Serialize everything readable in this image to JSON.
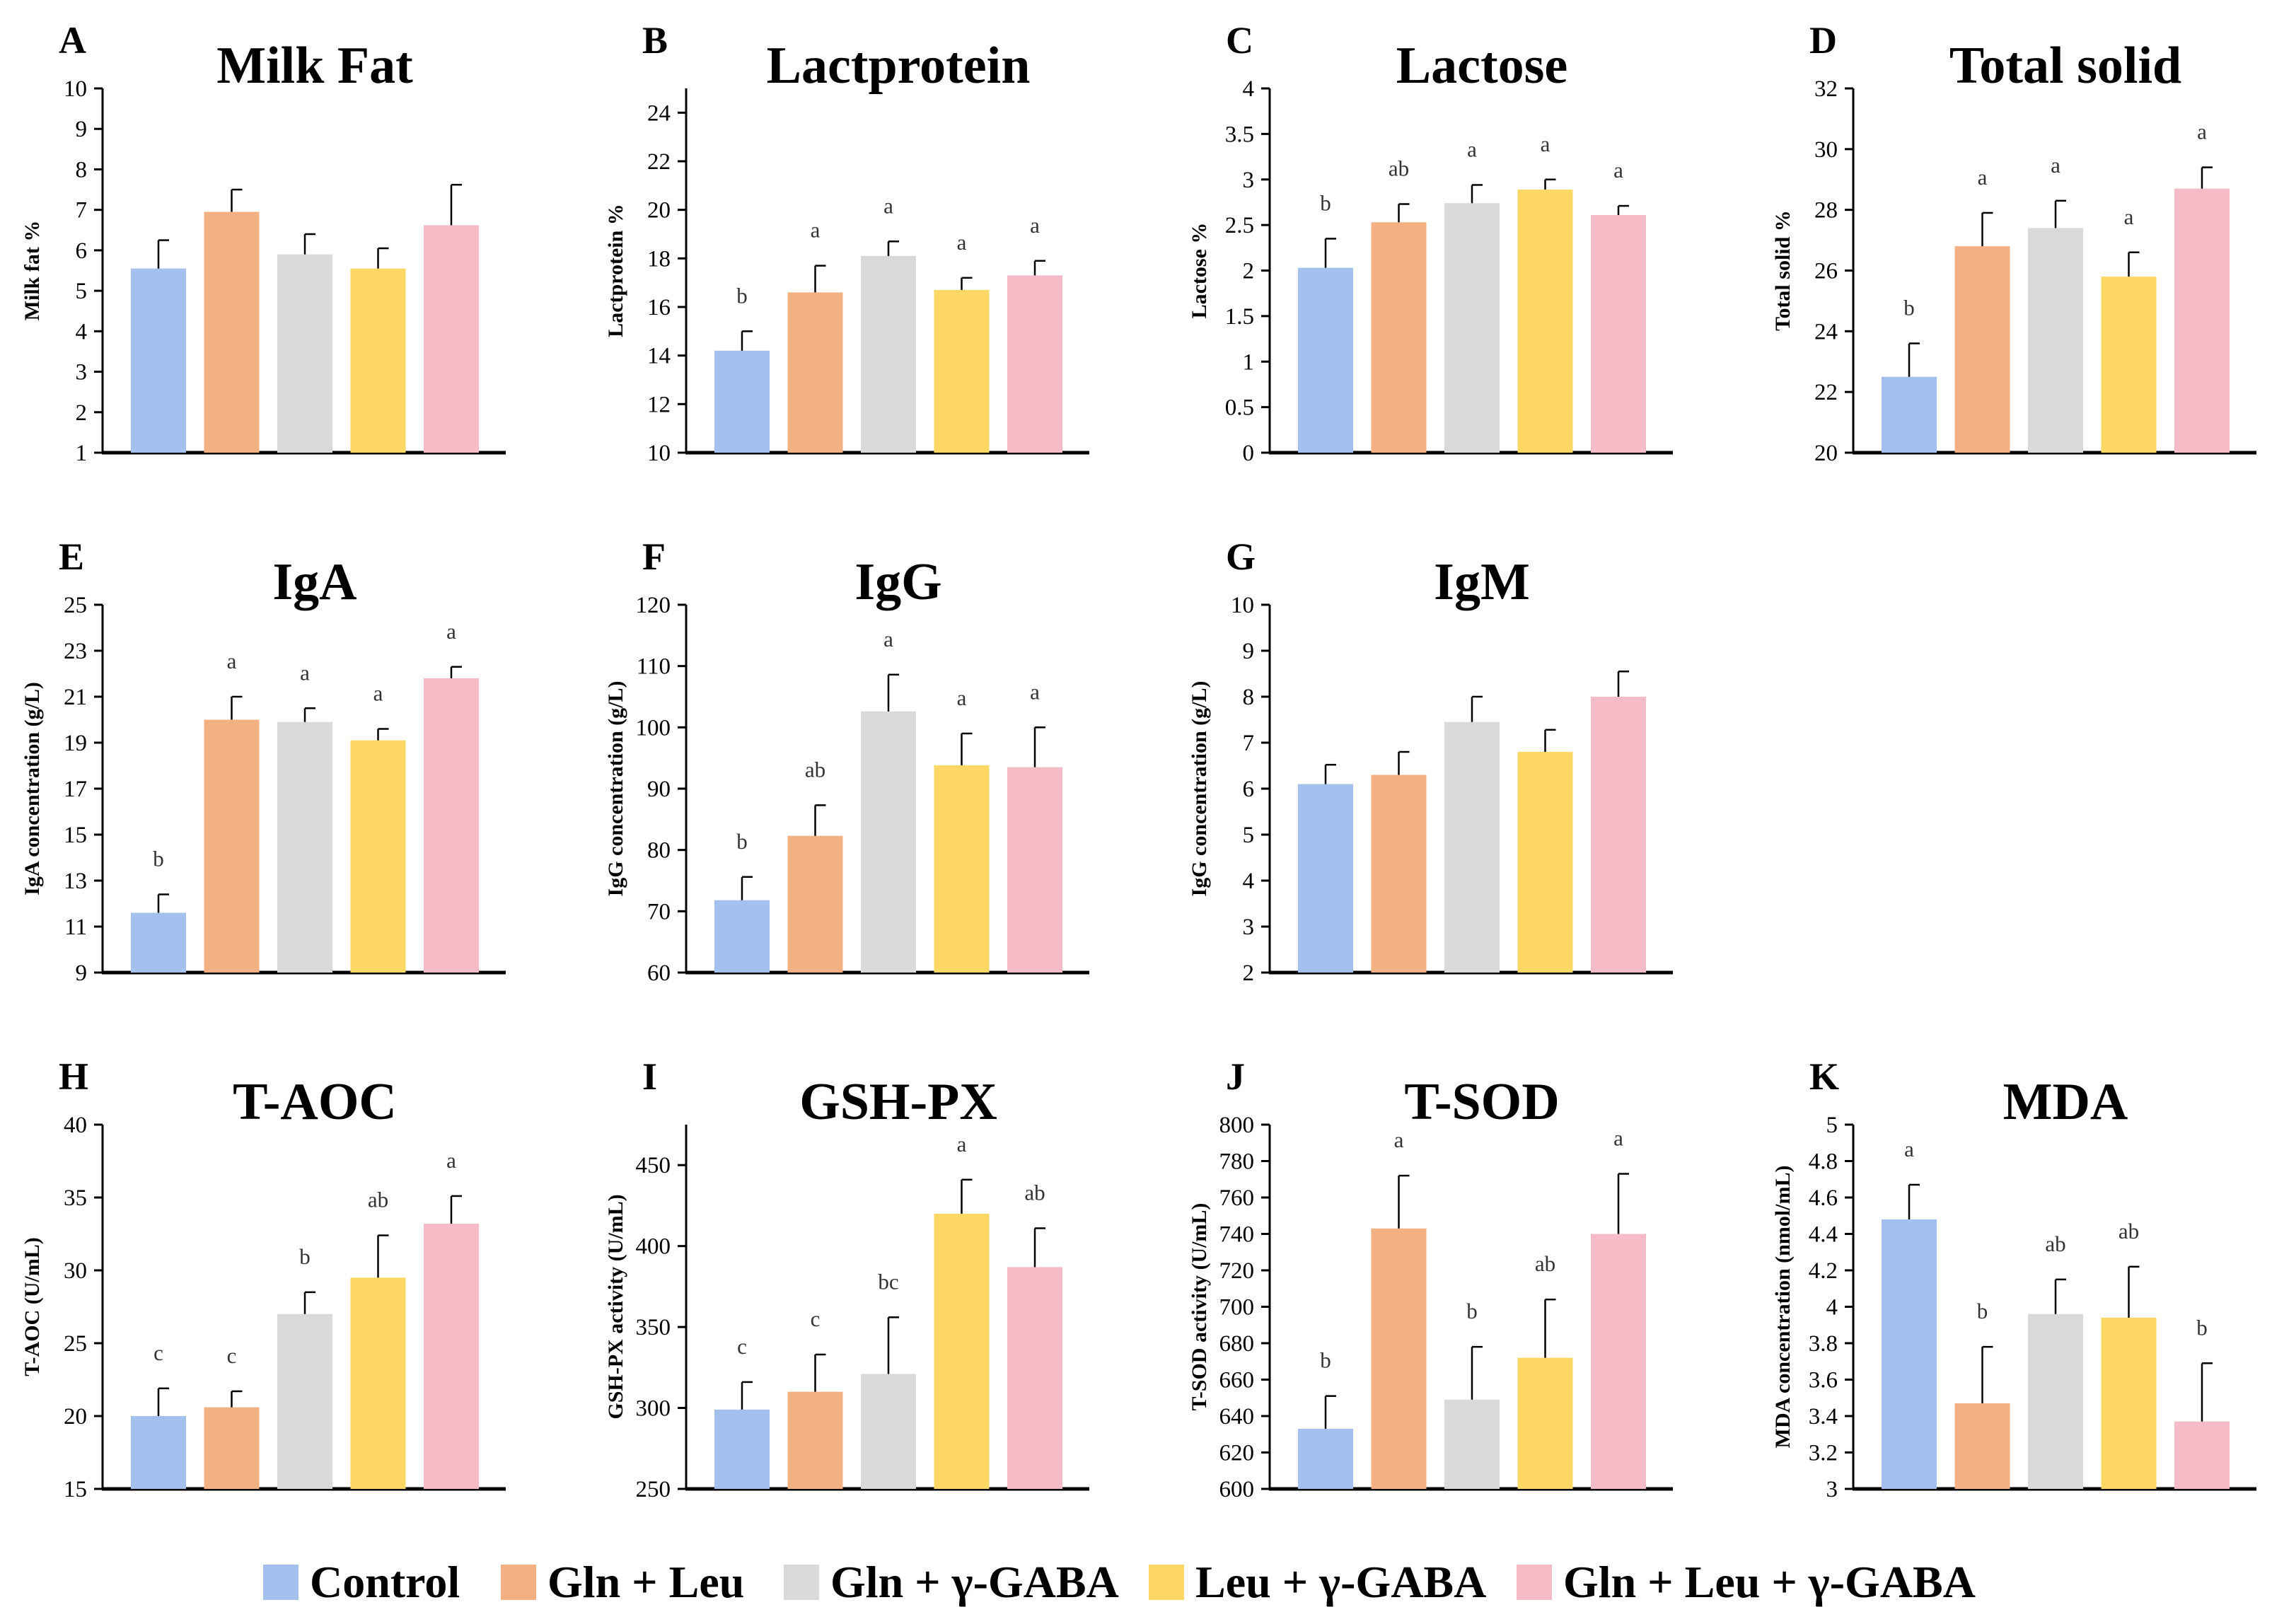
{
  "colors": {
    "Control": "#a3c0ee",
    "Gln + Leu": "#f3b083",
    "Gln + γ-GABA": "#d9d9d9",
    "Leu + γ-GABA": "#fed865",
    "Gln + Leu + γ-GABA": "#f5bcc7"
  },
  "legend": [
    "Control",
    "Gln + Leu",
    "Gln + γ-GABA",
    "Leu + γ-GABA",
    "Gln + Leu + γ-GABA"
  ],
  "chart_data": [
    {
      "id": "A",
      "type": "bar",
      "title": "Milk Fat",
      "ylabel": "Milk fat %",
      "ylim": [
        1,
        10
      ],
      "yticks": [
        "1",
        "2",
        "3",
        "4",
        "5",
        "6",
        "7",
        "8",
        "9",
        "10"
      ],
      "categories": [
        "Control",
        "Gln + Leu",
        "Gln + γ-GABA",
        "Leu + γ-GABA",
        "Gln + Leu + γ-GABA"
      ],
      "values": [
        5.55,
        6.95,
        5.9,
        5.55,
        6.62
      ],
      "errors": [
        0.7,
        0.55,
        0.5,
        0.5,
        1.0
      ],
      "letters": [
        "",
        "",
        "",
        "",
        ""
      ]
    },
    {
      "id": "B",
      "type": "bar",
      "title": "Lactprotein",
      "ylabel": "Lactprotein %",
      "ylim": [
        10,
        25
      ],
      "yticks": [
        "10",
        "12",
        "14",
        "16",
        "18",
        "20",
        "22",
        "24"
      ],
      "categories": [
        "Control",
        "Gln + Leu",
        "Gln + γ-GABA",
        "Leu + γ-GABA",
        "Gln + Leu + γ-GABA"
      ],
      "values": [
        14.2,
        16.6,
        18.1,
        16.7,
        17.3
      ],
      "errors": [
        0.8,
        1.1,
        0.6,
        0.5,
        0.6
      ],
      "letters": [
        "b",
        "a",
        "a",
        "a",
        "a"
      ]
    },
    {
      "id": "C",
      "type": "bar",
      "title": "Lactose",
      "ylabel": "Lactose %",
      "ylim": [
        0,
        4
      ],
      "yticks": [
        "0",
        "0.5",
        "1",
        "1.5",
        "2",
        "2.5",
        "3",
        "3.5",
        "4"
      ],
      "categories": [
        "Control",
        "Gln + Leu",
        "Gln + γ-GABA",
        "Leu + γ-GABA",
        "Gln + Leu + γ-GABA"
      ],
      "values": [
        2.03,
        2.53,
        2.74,
        2.89,
        2.61
      ],
      "errors": [
        0.32,
        0.2,
        0.2,
        0.11,
        0.1
      ],
      "letters": [
        "b",
        "ab",
        "a",
        "a",
        "a"
      ]
    },
    {
      "id": "D",
      "type": "bar",
      "title": "Total solid",
      "ylabel": "Total solid %",
      "ylim": [
        20,
        32
      ],
      "yticks": [
        "20",
        "22",
        "24",
        "26",
        "28",
        "30",
        "32"
      ],
      "categories": [
        "Control",
        "Gln + Leu",
        "Gln + γ-GABA",
        "Leu + γ-GABA",
        "Gln + Leu + γ-GABA"
      ],
      "values": [
        22.5,
        26.8,
        27.4,
        25.8,
        28.7
      ],
      "errors": [
        1.1,
        1.1,
        0.9,
        0.8,
        0.7
      ],
      "letters": [
        "b",
        "a",
        "a",
        "a",
        "a"
      ]
    },
    {
      "id": "E",
      "type": "bar",
      "title": "IgA",
      "ylabel": "IgA concentration (g/L)",
      "ylim": [
        9,
        25
      ],
      "yticks": [
        "9",
        "11",
        "13",
        "15",
        "17",
        "19",
        "21",
        "23",
        "25"
      ],
      "categories": [
        "Control",
        "Gln + Leu",
        "Gln + γ-GABA",
        "Leu + γ-GABA",
        "Gln + Leu + γ-GABA"
      ],
      "values": [
        11.6,
        20.0,
        19.9,
        19.1,
        21.8
      ],
      "errors": [
        0.8,
        1.0,
        0.6,
        0.5,
        0.5
      ],
      "letters": [
        "b",
        "a",
        "a",
        "a",
        "a"
      ]
    },
    {
      "id": "F",
      "type": "bar",
      "title": "IgG",
      "ylabel": "IgG concentration (g/L)",
      "ylim": [
        60,
        120
      ],
      "yticks": [
        "60",
        "70",
        "80",
        "90",
        "100",
        "110",
        "120"
      ],
      "categories": [
        "Control",
        "Gln + Leu",
        "Gln + γ-GABA",
        "Leu + γ-GABA",
        "Gln + Leu + γ-GABA"
      ],
      "values": [
        71.8,
        82.3,
        102.6,
        93.8,
        93.5
      ],
      "errors": [
        3.8,
        5.0,
        6.0,
        5.2,
        6.5
      ],
      "letters": [
        "b",
        "ab",
        "a",
        "a",
        "a"
      ]
    },
    {
      "id": "G",
      "type": "bar",
      "title": "IgM",
      "ylabel": "IgG concentration (g/L)",
      "ylim": [
        2,
        10
      ],
      "yticks": [
        "2",
        "3",
        "4",
        "5",
        "6",
        "7",
        "8",
        "9",
        "10"
      ],
      "categories": [
        "Control",
        "Gln + Leu",
        "Gln + γ-GABA",
        "Leu + γ-GABA",
        "Gln + Leu + γ-GABA"
      ],
      "values": [
        6.1,
        6.3,
        7.45,
        6.8,
        8.0
      ],
      "errors": [
        0.42,
        0.5,
        0.55,
        0.48,
        0.55
      ],
      "letters": [
        "",
        "",
        "",
        "",
        ""
      ]
    },
    {
      "id": "H",
      "type": "bar",
      "title": "T-AOC",
      "ylabel": "T-AOC  (U/mL)",
      "ylim": [
        15,
        40
      ],
      "yticks": [
        "15",
        "20",
        "25",
        "30",
        "35",
        "40"
      ],
      "categories": [
        "Control",
        "Gln + Leu",
        "Gln + γ-GABA",
        "Leu + γ-GABA",
        "Gln + Leu + γ-GABA"
      ],
      "values": [
        20.0,
        20.6,
        27.0,
        29.5,
        33.2
      ],
      "errors": [
        1.9,
        1.1,
        1.5,
        2.9,
        1.9
      ],
      "letters": [
        "c",
        "c",
        "b",
        "ab",
        "a"
      ]
    },
    {
      "id": "I",
      "type": "bar",
      "title": "GSH-PX",
      "ylabel": "GSH-PX activity  (U/mL)",
      "ylim": [
        250,
        475
      ],
      "yticks": [
        "250",
        "300",
        "350",
        "400",
        "450"
      ],
      "categories": [
        "Control",
        "Gln + Leu",
        "Gln + γ-GABA",
        "Leu + γ-GABA",
        "Gln + Leu + γ-GABA"
      ],
      "values": [
        299,
        310,
        321,
        420,
        387
      ],
      "errors": [
        17,
        23,
        35,
        21,
        24
      ],
      "letters": [
        "c",
        "c",
        "bc",
        "a",
        "ab"
      ]
    },
    {
      "id": "J",
      "type": "bar",
      "title": "T-SOD",
      "ylabel": "T-SOD activity  (U/mL)",
      "ylim": [
        600,
        800
      ],
      "yticks": [
        "600",
        "620",
        "640",
        "660",
        "680",
        "700",
        "720",
        "740",
        "760",
        "780",
        "800"
      ],
      "categories": [
        "Control",
        "Gln + Leu",
        "Gln + γ-GABA",
        "Leu + γ-GABA",
        "Gln + Leu + γ-GABA"
      ],
      "values": [
        633,
        743,
        649,
        672,
        740
      ],
      "errors": [
        18,
        29,
        29,
        32,
        33
      ],
      "letters": [
        "b",
        "a",
        "b",
        "ab",
        "a"
      ]
    },
    {
      "id": "K",
      "type": "bar",
      "title": "MDA",
      "ylabel": "MDA concentration  (nmol/mL)",
      "ylim": [
        3,
        5
      ],
      "yticks": [
        "3",
        "3.2",
        "3.4",
        "3.6",
        "3.8",
        "4",
        "4.2",
        "4.4",
        "4.6",
        "4.8",
        "5"
      ],
      "categories": [
        "Control",
        "Gln + Leu",
        "Gln + γ-GABA",
        "Leu + γ-GABA",
        "Gln + Leu + γ-GABA"
      ],
      "values": [
        4.48,
        3.47,
        3.96,
        3.94,
        3.37
      ],
      "errors": [
        0.19,
        0.31,
        0.19,
        0.28,
        0.32
      ],
      "letters": [
        "a",
        "b",
        "ab",
        "ab",
        "b"
      ]
    }
  ]
}
